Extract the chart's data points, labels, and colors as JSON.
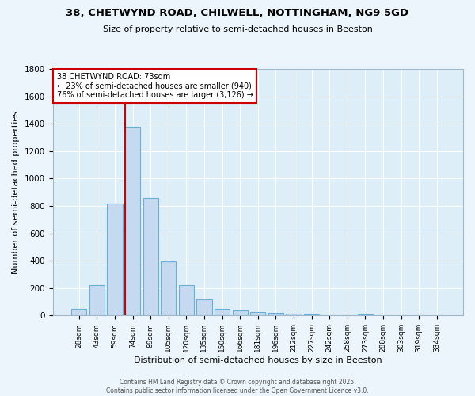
{
  "title1": "38, CHETWYND ROAD, CHILWELL, NOTTINGHAM, NG9 5GD",
  "title2": "Size of property relative to semi-detached houses in Beeston",
  "xlabel": "Distribution of semi-detached houses by size in Beeston",
  "ylabel": "Number of semi-detached properties",
  "categories": [
    "28sqm",
    "43sqm",
    "59sqm",
    "74sqm",
    "89sqm",
    "105sqm",
    "120sqm",
    "135sqm",
    "150sqm",
    "166sqm",
    "181sqm",
    "196sqm",
    "212sqm",
    "227sqm",
    "242sqm",
    "258sqm",
    "273sqm",
    "288sqm",
    "303sqm",
    "319sqm",
    "334sqm"
  ],
  "values": [
    50,
    220,
    820,
    1380,
    860,
    395,
    220,
    120,
    50,
    35,
    25,
    20,
    15,
    10,
    0,
    0,
    10,
    0,
    0,
    0,
    0
  ],
  "bar_color": "#c5d9f0",
  "bar_edge_color": "#6baed6",
  "red_line_color": "#cc0000",
  "annotation_title": "38 CHETWYND ROAD: 73sqm",
  "annotation_line1": "← 23% of semi-detached houses are smaller (940)",
  "annotation_line2": "76% of semi-detached houses are larger (3,126) →",
  "annotation_box_color": "#ffffff",
  "annotation_box_edge": "#cc0000",
  "ylim": [
    0,
    1800
  ],
  "yticks": [
    0,
    200,
    400,
    600,
    800,
    1000,
    1200,
    1400,
    1600,
    1800
  ],
  "bg_color": "#ddeef8",
  "grid_color": "#ffffff",
  "fig_bg_color": "#edf5fc",
  "footer1": "Contains HM Land Registry data © Crown copyright and database right 2025.",
  "footer2": "Contains public sector information licensed under the Open Government Licence v3.0."
}
